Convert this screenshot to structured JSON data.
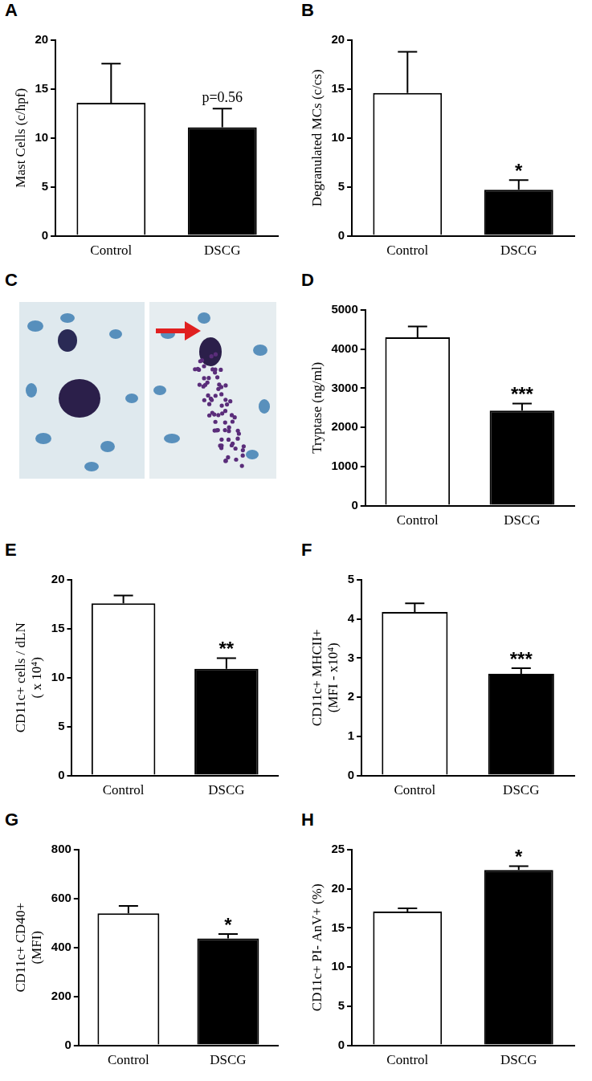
{
  "chart_data": [
    {
      "type": "bar",
      "title": "A",
      "y_label": [
        "Mast Cells (c/hpf)"
      ],
      "categories": [
        "Control",
        "DSCG"
      ],
      "values": [
        13.6,
        11.1
      ],
      "errors": [
        4.0,
        1.9
      ],
      "colors": [
        "#ffffff",
        "#000000"
      ],
      "ylim": [
        0,
        20
      ],
      "yticks": [
        0,
        5,
        10,
        15,
        20
      ],
      "grid": false,
      "annotations": [
        {
          "text": "p=0.56",
          "category": "DSCG"
        }
      ]
    },
    {
      "type": "bar",
      "title": "B",
      "y_label": [
        "Degranulated MCs (c/cs)"
      ],
      "categories": [
        "Control",
        "DSCG"
      ],
      "values": [
        14.6,
        4.7
      ],
      "errors": [
        4.2,
        1.0
      ],
      "colors": [
        "#ffffff",
        "#000000"
      ],
      "ylim": [
        0,
        20
      ],
      "yticks": [
        0,
        5,
        10,
        15,
        20
      ],
      "grid": false,
      "annotations": [
        {
          "text": "*",
          "category": "DSCG"
        }
      ]
    },
    {
      "type": "bar",
      "title": "D",
      "y_label": [
        "Tryptase (ng/ml)"
      ],
      "categories": [
        "Control",
        "DSCG"
      ],
      "values": [
        4300,
        2430
      ],
      "errors": [
        280,
        180
      ],
      "colors": [
        "#ffffff",
        "#000000"
      ],
      "ylim": [
        0,
        5000
      ],
      "yticks": [
        0,
        1000,
        2000,
        3000,
        4000,
        5000
      ],
      "grid": false,
      "annotations": [
        {
          "text": "***",
          "category": "DSCG"
        }
      ]
    },
    {
      "type": "bar",
      "title": "E",
      "y_label": [
        "CD11c+ cells / dLN",
        "( x 10⁴)"
      ],
      "categories": [
        "Control",
        "DSCG"
      ],
      "values": [
        17.6,
        10.9
      ],
      "errors": [
        0.8,
        1.1
      ],
      "colors": [
        "#ffffff",
        "#000000"
      ],
      "ylim": [
        0,
        20
      ],
      "yticks": [
        0,
        5,
        10,
        15,
        20
      ],
      "grid": false,
      "annotations": [
        {
          "text": "**",
          "category": "DSCG"
        }
      ]
    },
    {
      "type": "bar",
      "title": "F",
      "y_label": [
        "CD11c+ MHCII+",
        "(MFI - x10⁴)"
      ],
      "categories": [
        "Control",
        "DSCG"
      ],
      "values": [
        4.18,
        2.6
      ],
      "errors": [
        0.22,
        0.14
      ],
      "colors": [
        "#ffffff",
        "#000000"
      ],
      "ylim": [
        0,
        5
      ],
      "yticks": [
        0,
        1,
        2,
        3,
        4,
        5
      ],
      "grid": false,
      "annotations": [
        {
          "text": "***",
          "category": "DSCG"
        }
      ]
    },
    {
      "type": "bar",
      "title": "G",
      "y_label": [
        "CD11c+ CD40+",
        "(MFI)"
      ],
      "categories": [
        "Control",
        "DSCG"
      ],
      "values": [
        540,
        437
      ],
      "errors": [
        30,
        18
      ],
      "colors": [
        "#ffffff",
        "#000000"
      ],
      "ylim": [
        0,
        800
      ],
      "yticks": [
        0,
        200,
        400,
        600,
        800
      ],
      "grid": false,
      "annotations": [
        {
          "text": "*",
          "category": "DSCG"
        }
      ]
    },
    {
      "type": "bar",
      "title": "H",
      "y_label": [
        "CD11c+ PI- AnV+ (%)"
      ],
      "categories": [
        "Control",
        "DSCG"
      ],
      "values": [
        17.1,
        22.4
      ],
      "errors": [
        0.4,
        0.5
      ],
      "colors": [
        "#ffffff",
        "#000000"
      ],
      "ylim": [
        0,
        25
      ],
      "yticks": [
        0,
        5,
        10,
        15,
        20,
        25
      ],
      "grid": false,
      "annotations": [
        {
          "text": "*",
          "category": "DSCG"
        }
      ]
    }
  ],
  "image_panel": {
    "title": "C"
  }
}
